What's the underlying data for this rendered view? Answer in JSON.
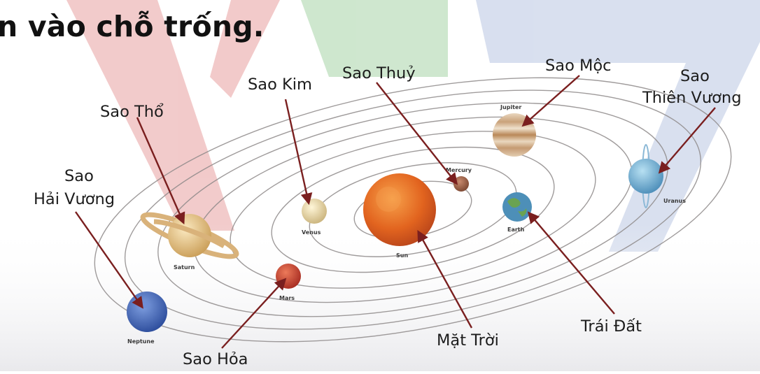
{
  "heading": "n vào chỗ trống.",
  "labels": {
    "sao_tho": "Sao Thổ",
    "sao_kim": "Sao Kim",
    "sao_thuy": "Sao Thuỷ",
    "sao_moc": "Sao Mộc",
    "sao_thien_vuong_1": "Sao",
    "sao_thien_vuong_2": "Thiên Vương",
    "sao_hai_vuong_1": "Sao",
    "sao_hai_vuong_2": "Hải Vương",
    "sao_hoa": "Sao Hỏa",
    "mat_troi": "Mặt Trời",
    "trai_dat": "Trái Đất"
  },
  "planet_names": {
    "jupiter": "Jupiter",
    "mercury": "Mercury",
    "uranus": "Uranus",
    "venus": "Venus",
    "earth": "Earth",
    "sun": "Sun",
    "saturn": "Saturn",
    "mars": "Mars",
    "neptune": "Neptune"
  },
  "colors": {
    "watermark_red": "#e8a0a0",
    "watermark_green": "#a7d4a7",
    "watermark_blue": "#b9c6e2",
    "arrow": "#7a1f1f",
    "sun": "#e2641f",
    "mars": "#c5382a",
    "neptune": "#3e63b8",
    "uranus": "#6aa6cf",
    "earth": "#4d8fb8"
  }
}
